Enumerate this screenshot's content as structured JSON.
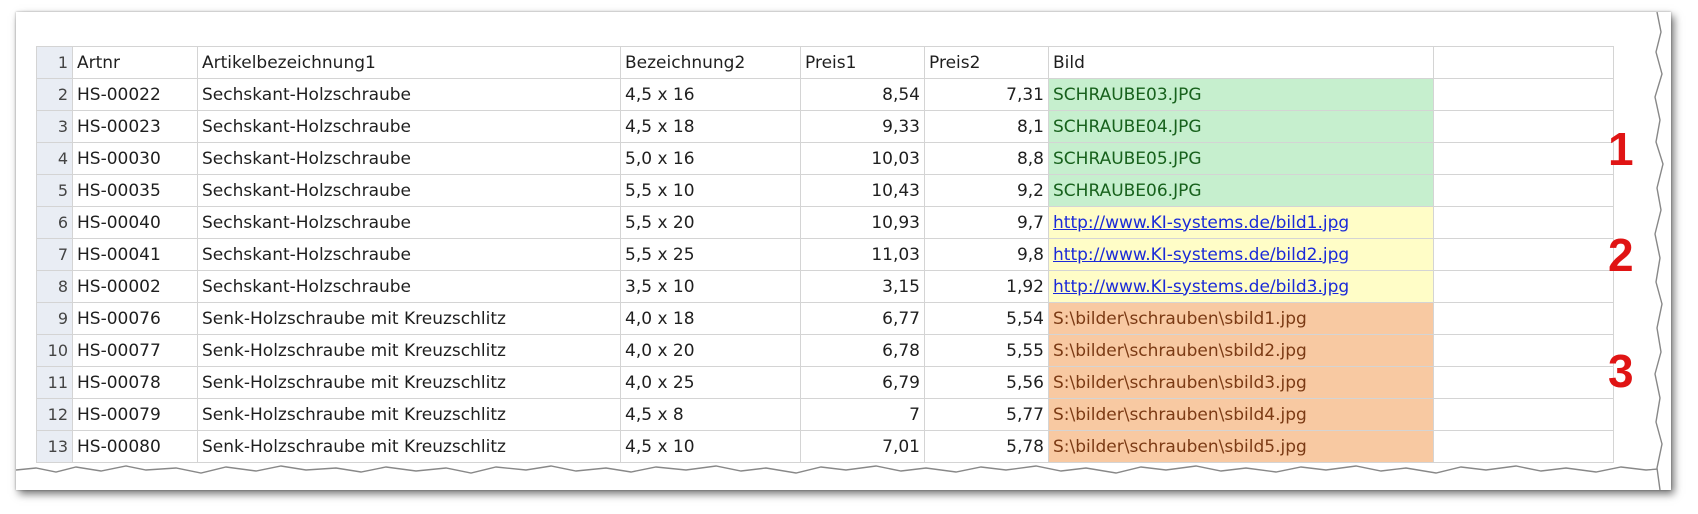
{
  "sheet": {
    "headers": [
      "Artnr",
      "Artikelbezeichnung1",
      "Bezeichnung2",
      "Preis1",
      "Preis2",
      "Bild"
    ],
    "rows": [
      {
        "n": "2",
        "artnr": "HS-00022",
        "bez1": "Sechskant-Holzschraube",
        "bez2": "4,5 x 16",
        "p1": "8,54",
        "p2": "7,31",
        "bild": "SCHRAUBE03.JPG",
        "group": "green"
      },
      {
        "n": "3",
        "artnr": "HS-00023",
        "bez1": "Sechskant-Holzschraube",
        "bez2": "4,5 x 18",
        "p1": "9,33",
        "p2": "8,1",
        "bild": "SCHRAUBE04.JPG",
        "group": "green"
      },
      {
        "n": "4",
        "artnr": "HS-00030",
        "bez1": "Sechskant-Holzschraube",
        "bez2": "5,0 x 16",
        "p1": "10,03",
        "p2": "8,8",
        "bild": "SCHRAUBE05.JPG",
        "group": "green"
      },
      {
        "n": "5",
        "artnr": "HS-00035",
        "bez1": "Sechskant-Holzschraube",
        "bez2": "5,5 x 10",
        "p1": "10,43",
        "p2": "9,2",
        "bild": "SCHRAUBE06.JPG",
        "group": "green"
      },
      {
        "n": "6",
        "artnr": "HS-00040",
        "bez1": "Sechskant-Holzschraube",
        "bez2": "5,5 x 20",
        "p1": "10,93",
        "p2": "9,7",
        "bild": "http://www.KI-systems.de/bild1.jpg",
        "group": "yellow"
      },
      {
        "n": "7",
        "artnr": "HS-00041",
        "bez1": "Sechskant-Holzschraube",
        "bez2": "5,5 x 25",
        "p1": "11,03",
        "p2": "9,8",
        "bild": "http://www.KI-systems.de/bild2.jpg",
        "group": "yellow"
      },
      {
        "n": "8",
        "artnr": "HS-00002",
        "bez1": "Sechskant-Holzschraube",
        "bez2": "3,5 x 10",
        "p1": "3,15",
        "p2": "1,92",
        "bild": "http://www.KI-systems.de/bild3.jpg",
        "group": "yellow"
      },
      {
        "n": "9",
        "artnr": "HS-00076",
        "bez1": "Senk-Holzschraube mit Kreuzschlitz",
        "bez2": "4,0 x 18",
        "p1": "6,77",
        "p2": "5,54",
        "bild": "S:\\bilder\\schrauben\\sbild1.jpg",
        "group": "orange"
      },
      {
        "n": "10",
        "artnr": "HS-00077",
        "bez1": "Senk-Holzschraube mit Kreuzschlitz",
        "bez2": "4,0 x 20",
        "p1": "6,78",
        "p2": "5,55",
        "bild": "S:\\bilder\\schrauben\\sbild2.jpg",
        "group": "orange"
      },
      {
        "n": "11",
        "artnr": "HS-00078",
        "bez1": "Senk-Holzschraube mit Kreuzschlitz",
        "bez2": "4,0 x 25",
        "p1": "6,79",
        "p2": "5,56",
        "bild": "S:\\bilder\\schrauben\\sbild3.jpg",
        "group": "orange"
      },
      {
        "n": "12",
        "artnr": "HS-00079",
        "bez1": "Senk-Holzschraube mit Kreuzschlitz",
        "bez2": "4,5 x 8",
        "p1": "7",
        "p2": "5,77",
        "bild": "S:\\bilder\\schrauben\\sbild4.jpg",
        "group": "orange"
      },
      {
        "n": "13",
        "artnr": "HS-00080",
        "bez1": "Senk-Holzschraube mit Kreuzschlitz",
        "bez2": "4,5 x 10",
        "p1": "7,01",
        "p2": "5,78",
        "bild": "S:\\bilder\\schrauben\\sbild5.jpg",
        "group": "orange"
      }
    ]
  },
  "annotations": {
    "group1": "1",
    "group2": "2",
    "group3": "3"
  },
  "colors": {
    "green_fill": "#c6efce",
    "yellow_fill": "#fffdc7",
    "orange_fill": "#f8c9a2",
    "annotation_red": "#e01414"
  }
}
